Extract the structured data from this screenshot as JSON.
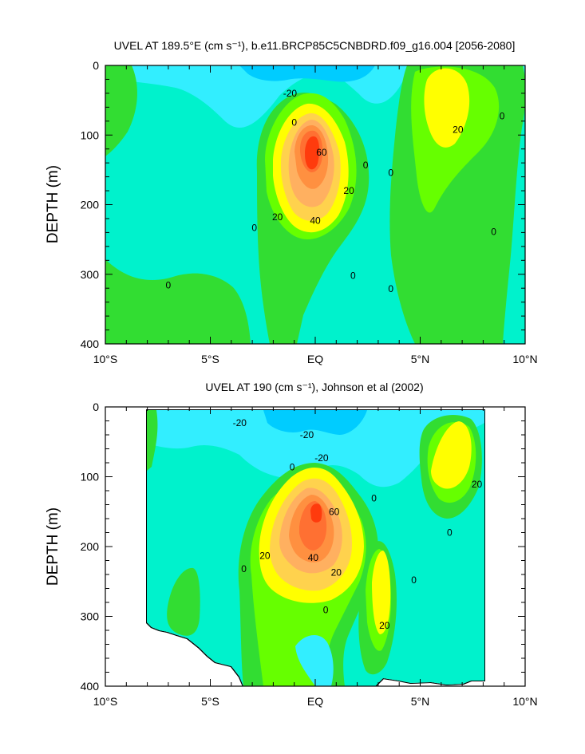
{
  "colors": {
    "strong_neg": "#00ccff",
    "weak_neg": "#33eeff",
    "near_zero": "#00f2cc",
    "pos_0_10": "#33dd33",
    "pos_10_20": "#66ff00",
    "pos_20_30": "#ffff00",
    "pos_30_40": "#ffd24d",
    "pos_40_50": "#ffb060",
    "pos_50_60": "#ff9040",
    "pos_60_70": "#ff7030",
    "pos_70_plus": "#ff3a10",
    "contour": "#000000"
  },
  "chart_data": [
    {
      "type": "contour",
      "title": "UVEL AT 189.5°E (cm s⁻¹), b.e11.BRCP85C5CNBDRD.f09_g16.004 [2056-2080]",
      "ylabel": "DEPTH (m)",
      "x_ticks": [
        "10°S",
        "5°S",
        "EQ",
        "5°N",
        "10°N"
      ],
      "x_range": [
        -10,
        10
      ],
      "y_ticks": [
        "0",
        "100",
        "200",
        "300",
        "400"
      ],
      "y_range": [
        0,
        400
      ],
      "y_inverted": true,
      "contour_interval": 10,
      "contour_labels": [
        {
          "text": "-20",
          "lat": -1.2,
          "depth": 40
        },
        {
          "text": "0",
          "lat": -1.0,
          "depth": 82
        },
        {
          "text": "60",
          "lat": 0.3,
          "depth": 125
        },
        {
          "text": "20",
          "lat": 1.6,
          "depth": 180
        },
        {
          "text": "20",
          "lat": -1.8,
          "depth": 218
        },
        {
          "text": "40",
          "lat": 0.0,
          "depth": 223
        },
        {
          "text": "0",
          "lat": -2.9,
          "depth": 233
        },
        {
          "text": "0",
          "lat": 2.4,
          "depth": 143
        },
        {
          "text": "0",
          "lat": 3.6,
          "depth": 154
        },
        {
          "text": "0",
          "lat": 1.8,
          "depth": 302
        },
        {
          "text": "0",
          "lat": 3.6,
          "depth": 321
        },
        {
          "text": "0",
          "lat": -7.0,
          "depth": 316
        },
        {
          "text": "20",
          "lat": 6.8,
          "depth": 92
        },
        {
          "text": "0",
          "lat": 8.9,
          "depth": 73
        },
        {
          "text": "0",
          "lat": 8.5,
          "depth": 239
        }
      ]
    },
    {
      "type": "contour",
      "title": "UVEL AT 190 (cm s⁻¹), Johnson et al (2002)",
      "ylabel": "DEPTH (m)",
      "x_ticks": [
        "10°S",
        "5°S",
        "EQ",
        "5°N",
        "10°N"
      ],
      "x_range": [
        -10,
        10
      ],
      "y_ticks": [
        "0",
        "100",
        "200",
        "300",
        "400"
      ],
      "y_range": [
        0,
        400
      ],
      "y_inverted": true,
      "contour_interval": 10,
      "contour_labels": [
        {
          "text": "-20",
          "lat": -3.6,
          "depth": 23
        },
        {
          "text": "-20",
          "lat": -0.4,
          "depth": 40
        },
        {
          "text": "-20",
          "lat": 0.3,
          "depth": 73
        },
        {
          "text": "0",
          "lat": -1.1,
          "depth": 86
        },
        {
          "text": "60",
          "lat": 0.9,
          "depth": 150
        },
        {
          "text": "20",
          "lat": -2.4,
          "depth": 213
        },
        {
          "text": "40",
          "lat": -0.1,
          "depth": 216
        },
        {
          "text": "20",
          "lat": 1.0,
          "depth": 237
        },
        {
          "text": "0",
          "lat": 2.8,
          "depth": 131
        },
        {
          "text": "0",
          "lat": -3.4,
          "depth": 232
        },
        {
          "text": "0",
          "lat": 4.7,
          "depth": 248
        },
        {
          "text": "0",
          "lat": 6.4,
          "depth": 180
        },
        {
          "text": "20",
          "lat": 7.7,
          "depth": 111
        },
        {
          "text": "0",
          "lat": 0.5,
          "depth": 291
        },
        {
          "text": "20",
          "lat": 3.3,
          "depth": 313
        }
      ]
    }
  ]
}
